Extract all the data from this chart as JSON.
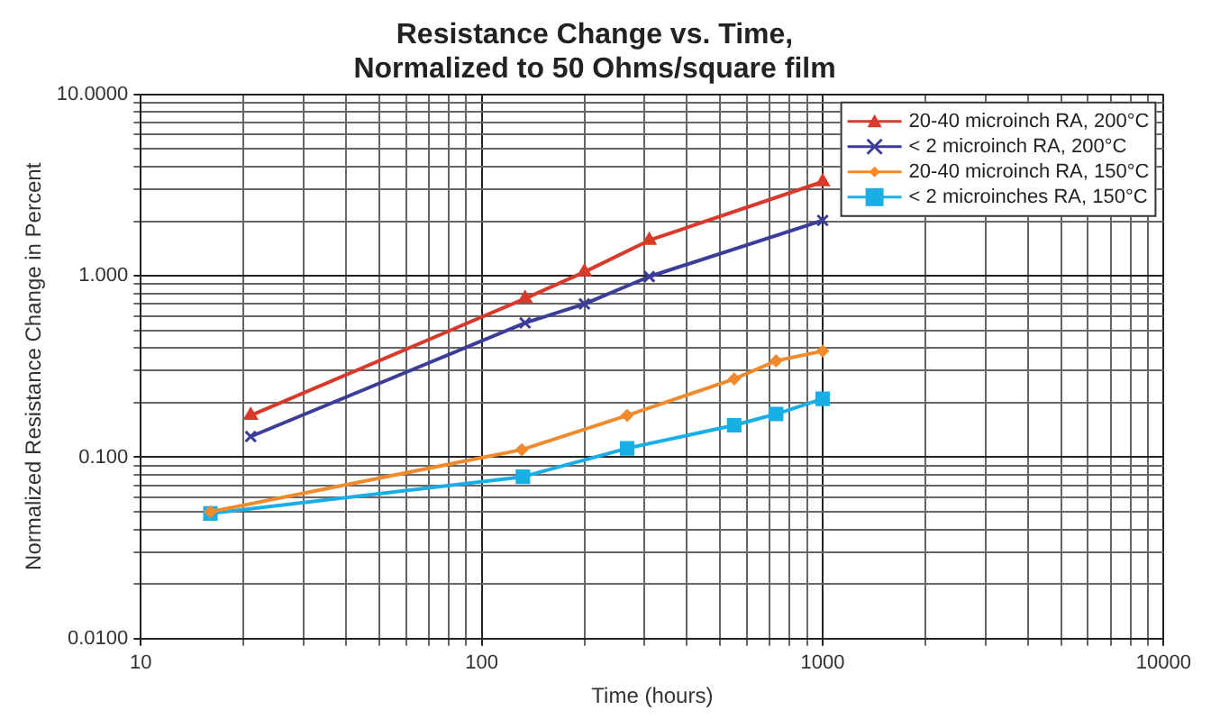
{
  "chart_data": {
    "type": "line",
    "title": "Resistance Change vs. Time,\nNormalized to 50 Ohms/square film",
    "xlabel": "Time (hours)",
    "ylabel": "Normalized Resistance Change in Percent",
    "log": "xy",
    "grid": true,
    "legend": "top right",
    "xlim": [
      10,
      10000
    ],
    "ylim": [
      0.01,
      10
    ],
    "xticks": [
      10,
      {
        "value": 20,
        "label": null
      },
      {
        "value": 30,
        "label": null
      },
      {
        "value": 40,
        "label": null
      },
      {
        "value": 50,
        "label": null
      },
      {
        "value": 60,
        "label": null
      },
      {
        "value": 70,
        "label": null
      },
      {
        "value": 80,
        "label": null
      },
      {
        "value": 90,
        "label": null
      },
      100,
      {
        "value": 200,
        "label": null
      },
      {
        "value": 300,
        "label": null
      },
      {
        "value": 400,
        "label": null
      },
      {
        "value": 500,
        "label": null
      },
      {
        "value": 600,
        "label": null
      },
      {
        "value": 700,
        "label": null
      },
      {
        "value": 800,
        "label": null
      },
      {
        "value": 900,
        "label": null
      },
      1000,
      {
        "value": 2000,
        "label": null
      },
      {
        "value": 3000,
        "label": null
      },
      {
        "value": 4000,
        "label": null
      },
      {
        "value": 5000,
        "label": null
      },
      {
        "value": 6000,
        "label": null
      },
      {
        "value": 7000,
        "label": null
      },
      {
        "value": 8000,
        "label": null
      },
      {
        "value": 9000,
        "label": null
      },
      10000
    ],
    "yticks": [
      {
        "value": 0.01,
        "label": "0.0100"
      },
      {
        "value": 0.02,
        "label": null
      },
      {
        "value": 0.03,
        "label": null
      },
      {
        "value": 0.04,
        "label": null
      },
      {
        "value": 0.05,
        "label": null
      },
      {
        "value": 0.06,
        "label": null
      },
      {
        "value": 0.07,
        "label": null
      },
      {
        "value": 0.08,
        "label": null
      },
      {
        "value": 0.09,
        "label": null
      },
      {
        "value": 0.1,
        "label": "0.100"
      },
      {
        "value": 0.2,
        "label": null
      },
      {
        "value": 0.3,
        "label": null
      },
      {
        "value": 0.4,
        "label": null
      },
      {
        "value": 0.5,
        "label": null
      },
      {
        "value": 0.6,
        "label": null
      },
      {
        "value": 0.7,
        "label": null
      },
      {
        "value": 0.8,
        "label": null
      },
      {
        "value": 0.9,
        "label": null
      },
      {
        "value": 1,
        "label": "1.000"
      },
      {
        "value": 2,
        "label": null
      },
      {
        "value": 3,
        "label": null
      },
      {
        "value": 4,
        "label": null
      },
      {
        "value": 5,
        "label": null
      },
      {
        "value": 6,
        "label": null
      },
      {
        "value": 7,
        "label": null
      },
      {
        "value": 8,
        "label": null
      },
      {
        "value": 9,
        "label": null
      },
      {
        "value": 10,
        "label": "10.0000"
      }
    ],
    "series": [
      {
        "name": "20-40 microinch RA, 200°C",
        "color": "#d9392b",
        "marker": "triangle",
        "x": [
          21,
          134,
          200,
          310,
          1000
        ],
        "values": [
          0.17,
          0.75,
          1.05,
          1.57,
          3.3
        ]
      },
      {
        "name": "< 2 microinch RA, 200°C",
        "color": "#3c3c99",
        "marker": "cross",
        "x": [
          21,
          134,
          200,
          310,
          1000
        ],
        "values": [
          0.13,
          0.55,
          0.7,
          0.99,
          2.02
        ]
      },
      {
        "name": "20-40 microinch RA, 150°C",
        "color": "#f08a2c",
        "marker": "diamond",
        "x": [
          16,
          131,
          267,
          550,
          730,
          1000
        ],
        "values": [
          0.05,
          0.11,
          0.17,
          0.27,
          0.34,
          0.385
        ]
      },
      {
        "name": "< 2 microinches RA, 150°C",
        "color": "#1aaee6",
        "marker": "square",
        "x": [
          16,
          132,
          267,
          550,
          730,
          1000
        ],
        "values": [
          0.049,
          0.078,
          0.112,
          0.15,
          0.173,
          0.21
        ]
      }
    ]
  }
}
